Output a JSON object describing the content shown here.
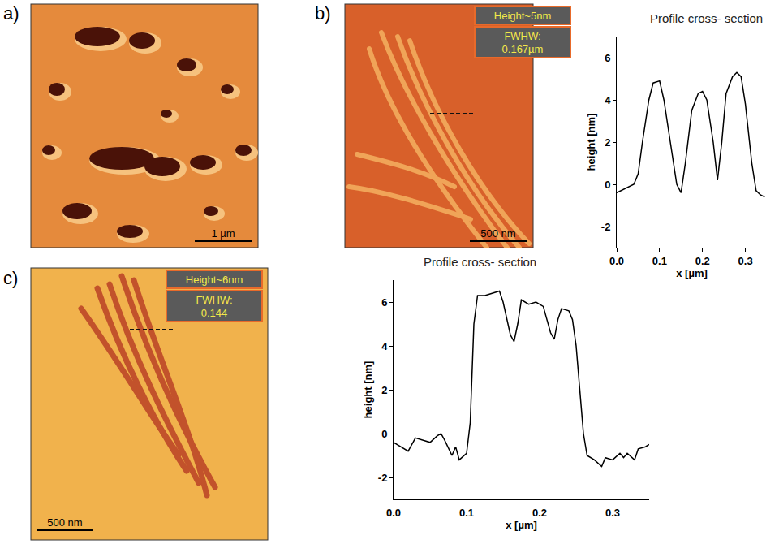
{
  "panels": [
    {
      "label": "a)",
      "scale_bar": "1 µm"
    },
    {
      "label": "b)",
      "scale_bar": "500 nm",
      "annotations": [
        "Height~5nm",
        "FWHW: 0.167µm"
      ]
    },
    {
      "label": "c)",
      "scale_bar": "500 nm",
      "annotations": [
        "Height~6nm",
        "FWHW: 0.144"
      ]
    }
  ],
  "chart_data": [
    {
      "type": "line",
      "title": "Profile cross- section",
      "x_label": "x [µm]",
      "y_label": "height [nm]",
      "color": "#000000",
      "x": [
        0.0,
        0.02,
        0.04,
        0.05,
        0.06,
        0.075,
        0.085,
        0.1,
        0.11,
        0.125,
        0.14,
        0.15,
        0.16,
        0.175,
        0.19,
        0.2,
        0.21,
        0.225,
        0.235,
        0.245,
        0.255,
        0.27,
        0.28,
        0.29,
        0.3,
        0.315,
        0.325,
        0.335,
        0.345
      ],
      "values": [
        -0.4,
        -0.2,
        0.0,
        0.5,
        2.0,
        4.0,
        4.8,
        4.9,
        4.0,
        2.0,
        0.0,
        -0.4,
        1.0,
        3.5,
        4.3,
        4.4,
        4.0,
        2.0,
        0.2,
        2.0,
        4.3,
        5.1,
        5.3,
        5.1,
        3.8,
        1.0,
        -0.3,
        -0.5,
        -0.6
      ],
      "xlim": [
        0,
        0.35
      ],
      "ylim": [
        -3,
        7
      ],
      "xticks": [
        {
          "value": 0,
          "label": "0.0"
        },
        0.1,
        0.2,
        0.3
      ],
      "yticks": [
        -2,
        0,
        2,
        4,
        6
      ],
      "grid": false
    },
    {
      "type": "line",
      "title": "Profile cross- section",
      "x_label": "x [µm]",
      "y_label": "height [nm]",
      "color": "#000000",
      "x": [
        0.0,
        0.01,
        0.02,
        0.03,
        0.04,
        0.05,
        0.06,
        0.065,
        0.07,
        0.08,
        0.085,
        0.09,
        0.1,
        0.105,
        0.11,
        0.115,
        0.125,
        0.135,
        0.145,
        0.15,
        0.155,
        0.16,
        0.165,
        0.17,
        0.175,
        0.185,
        0.195,
        0.205,
        0.21,
        0.215,
        0.22,
        0.225,
        0.23,
        0.24,
        0.245,
        0.25,
        0.255,
        0.26,
        0.265,
        0.275,
        0.285,
        0.29,
        0.3,
        0.31,
        0.315,
        0.32,
        0.33,
        0.335,
        0.345,
        0.35
      ],
      "values": [
        -0.4,
        -0.6,
        -0.8,
        -0.2,
        -0.3,
        -0.4,
        -0.1,
        0.0,
        -0.3,
        -1.0,
        -0.6,
        -1.2,
        -0.9,
        0.5,
        5.0,
        6.3,
        6.3,
        6.4,
        6.5,
        6.0,
        5.2,
        4.5,
        4.2,
        5.0,
        6.1,
        5.9,
        6.0,
        5.8,
        5.2,
        4.6,
        4.3,
        5.2,
        5.7,
        5.6,
        5.2,
        4.0,
        2.0,
        0.0,
        -1.0,
        -1.2,
        -1.5,
        -1.1,
        -1.2,
        -0.9,
        -1.1,
        -0.9,
        -1.2,
        -0.7,
        -0.6,
        -0.5
      ],
      "xlim": [
        0,
        0.35
      ],
      "ylim": [
        -3,
        7
      ],
      "xticks": [
        {
          "value": 0,
          "label": "0.0"
        },
        0.1,
        0.2,
        0.3
      ],
      "yticks": [
        -2,
        0,
        2,
        4,
        6
      ],
      "grid": false
    }
  ]
}
